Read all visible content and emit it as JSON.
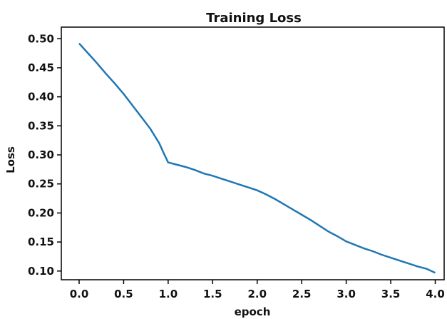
{
  "chart_data": {
    "type": "line",
    "title": "Training Loss",
    "xlabel": "epoch",
    "ylabel": "Loss",
    "xlim": [
      -0.2,
      4.1
    ],
    "ylim": [
      0.085,
      0.52
    ],
    "xticks": [
      0.0,
      0.5,
      1.0,
      1.5,
      2.0,
      2.5,
      3.0,
      3.5,
      4.0
    ],
    "xtick_labels": [
      "0.0",
      "0.5",
      "1.0",
      "1.5",
      "2.0",
      "2.5",
      "3.0",
      "3.5",
      "4.0"
    ],
    "yticks": [
      0.1,
      0.15,
      0.2,
      0.25,
      0.3,
      0.35,
      0.4,
      0.45,
      0.5
    ],
    "ytick_labels": [
      "0.10",
      "0.15",
      "0.20",
      "0.25",
      "0.30",
      "0.35",
      "0.40",
      "0.45",
      "0.50"
    ],
    "grid": false,
    "line_color": "#1f77b4",
    "series": [
      {
        "x": [
          0.0,
          0.1,
          0.2,
          0.3,
          0.4,
          0.5,
          0.6,
          0.7,
          0.8,
          0.9,
          0.95,
          1.0,
          1.1,
          1.2,
          1.3,
          1.4,
          1.5,
          1.6,
          1.7,
          1.8,
          1.9,
          2.0,
          2.1,
          2.2,
          2.3,
          2.4,
          2.5,
          2.6,
          2.7,
          2.8,
          2.9,
          3.0,
          3.1,
          3.2,
          3.3,
          3.4,
          3.5,
          3.6,
          3.7,
          3.8,
          3.9,
          4.0
        ],
        "values": [
          0.492,
          0.475,
          0.458,
          0.44,
          0.423,
          0.405,
          0.385,
          0.365,
          0.345,
          0.32,
          0.303,
          0.287,
          0.283,
          0.279,
          0.274,
          0.268,
          0.264,
          0.259,
          0.254,
          0.249,
          0.244,
          0.239,
          0.232,
          0.224,
          0.215,
          0.206,
          0.197,
          0.188,
          0.178,
          0.168,
          0.16,
          0.151,
          0.145,
          0.139,
          0.134,
          0.128,
          0.123,
          0.118,
          0.113,
          0.108,
          0.104,
          0.097
        ]
      }
    ]
  }
}
